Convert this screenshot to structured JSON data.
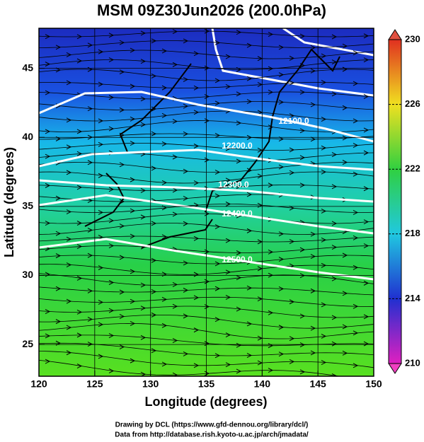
{
  "header": {
    "title": "MSM 09Z30Jun2026 (200.0hPa)"
  },
  "chart_data": {
    "type": "map",
    "xlabel": "Longitude (degrees)",
    "ylabel": "Latitude  (degrees)",
    "xlim": [
      120,
      150
    ],
    "ylim": [
      22.7,
      47.9
    ],
    "xticks": [
      120,
      125,
      130,
      135,
      140,
      145,
      150
    ],
    "yticks": [
      25,
      30,
      35,
      40,
      45
    ],
    "grid": true,
    "colorbar": {
      "lim": [
        210,
        230
      ],
      "ticks": [
        210,
        214,
        218,
        222,
        226,
        230
      ]
    },
    "contours": [
      {
        "value": 12100,
        "label": "12100.0"
      },
      {
        "value": 12200,
        "label": "12200.0"
      },
      {
        "value": 12300,
        "label": "12300.0"
      },
      {
        "value": 12400,
        "label": "12400.0"
      },
      {
        "value": 12500,
        "label": "12500.0"
      }
    ]
  },
  "footer": {
    "line1": "Drawing by DCL (https://www.gfd-dennou.org/library/dcl/)",
    "line2": "Data from http://database.rish.kyoto-u.ac.jp/arch/jmadata/"
  }
}
